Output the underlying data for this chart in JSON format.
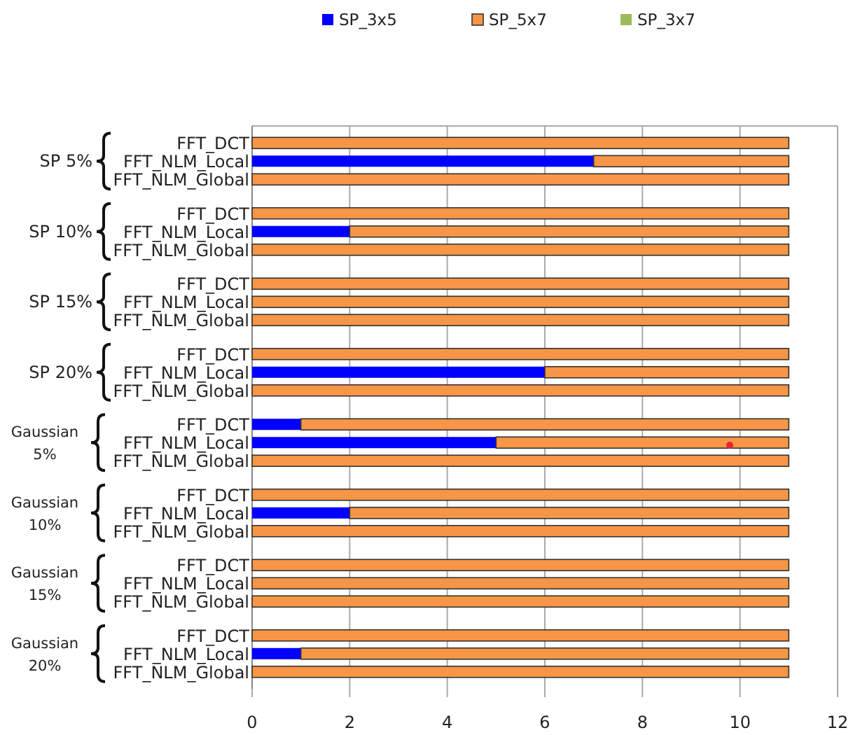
{
  "chart_data": {
    "type": "bar",
    "orientation": "horizontal",
    "stacked": true,
    "categories": [
      "FFT_DCT",
      "FFT_NLM_Local",
      "FFT_NLM_Global",
      "FFT_DCT",
      "FFT_NLM_Local",
      "FFT_NLM_Global",
      "FFT_DCT",
      "FFT_NLM_Local",
      "FFT_NLM_Global",
      "FFT_DCT",
      "FFT_NLM_Local",
      "FFT_NLM_Global",
      "FFT_DCT",
      "FFT_NLM_Local",
      "FFT_NLM_Global",
      "FFT_DCT",
      "FFT_NLM_Local",
      "FFT_NLM_Global",
      "FFT_DCT",
      "FFT_NLM_Local",
      "FFT_NLM_Global",
      "FFT_DCT",
      "FFT_NLM_Local",
      "FFT_NLM_Global"
    ],
    "series": [
      {
        "name": "SP_3x5",
        "color": "#0000ff",
        "values": [
          0,
          7,
          0,
          0,
          2,
          0,
          0,
          0,
          0,
          0,
          6,
          0,
          1,
          5,
          0,
          0,
          2,
          0,
          0,
          0,
          0,
          0,
          1,
          0
        ]
      },
      {
        "name": "SP_5x7",
        "color": "#f79646",
        "values": [
          11,
          4,
          11,
          11,
          9,
          11,
          11,
          11,
          11,
          11,
          5,
          11,
          10,
          6,
          11,
          11,
          9,
          11,
          11,
          11,
          11,
          11,
          10,
          11
        ]
      },
      {
        "name": "SP_3x7",
        "color": "#9bbb59",
        "values": [
          0,
          0,
          0,
          0,
          0,
          0,
          0,
          0,
          0,
          0,
          0,
          0,
          0,
          0,
          0,
          0,
          0,
          0,
          0,
          0,
          0,
          0,
          0,
          0
        ]
      }
    ],
    "xlim": [
      0,
      12
    ],
    "xticks": [
      0,
      2,
      4,
      6,
      8,
      10,
      12
    ],
    "grid": "x",
    "legend": "top",
    "annotations": [
      "SP 5%",
      "SP 10%",
      "SP 15%",
      "SP 20%",
      "Gaussian\n5%",
      "Gaussian\n10%",
      "Gaussian\n15%",
      "Gaussian\n20%"
    ]
  }
}
